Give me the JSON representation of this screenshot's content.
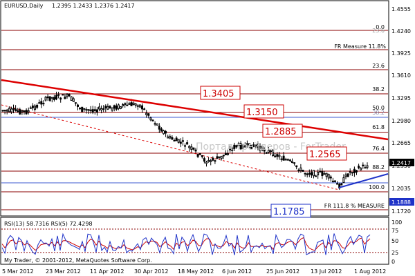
{
  "header": {
    "symbol_label": "EURUSD,Daily",
    "ohlc": "1.2395 1.2433 1.2376 1.2417"
  },
  "watermark": "Портал трейдеров - ForTrader",
  "footer": {
    "copyright": "My Trader, © 2001-2012, MetaQuotes Software Corp."
  },
  "price_axis": {
    "ticks": [
      "1.4555",
      "1.4240",
      "1.3925",
      "1.3610",
      "1.3295",
      "1.2980",
      "1.2665",
      "1.2350",
      "1.2035",
      "1.1720"
    ],
    "current_price": "1.2417",
    "support_price": "1.1888"
  },
  "rsi_panel": {
    "label": "RSI(13) 58.7316  RSI(5) 72.4298",
    "ticks": [
      "100",
      "75",
      "50",
      "25",
      "0"
    ]
  },
  "time_axis": {
    "labels": [
      "5 Mar 2012",
      "23 Mar 2012",
      "11 Apr 2012",
      "30 Apr 2012",
      "18 May 2012",
      "6 Jun 2012",
      "25 Jun 2012",
      "13 Jul 2012",
      "1 Aug 2012"
    ]
  },
  "fib_levels": [
    "0.0",
    "23.6",
    "FR Measure 11.8%",
    "23.6",
    "38.2",
    "50.0",
    "38.2",
    "61.8",
    "76.4",
    "88.2",
    "100.0",
    "FR 111.8 %   MEASURE"
  ],
  "price_labels": [
    "1.3405",
    "1.3150",
    "1.2885",
    "1.2565",
    "1.1785"
  ],
  "colors": {
    "candle_up": "#000000",
    "candle_down": "#000000",
    "fib_line": "#8b0000",
    "resistance_line": "#dd0000",
    "support_line": "#1e32c8",
    "rsi_fast": "#1e32c8",
    "rsi_slow": "#cc0000"
  }
}
